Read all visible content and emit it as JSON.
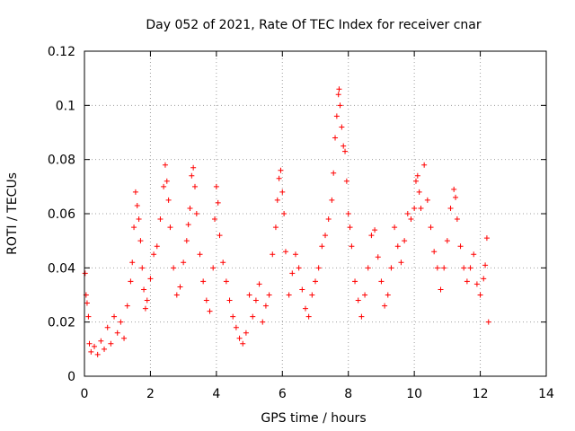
{
  "chart_data": {
    "type": "scatter",
    "title": "Day 052 of 2021, Rate Of TEC Index for receiver cnar",
    "xlabel": "GPS time / hours",
    "ylabel": "ROTI / TECUs",
    "xlim": [
      0,
      14
    ],
    "ylim": [
      0,
      0.12
    ],
    "x_ticks": [
      {
        "value": 0,
        "label": "0"
      },
      {
        "value": 2,
        "label": "2"
      },
      {
        "value": 4,
        "label": "4"
      },
      {
        "value": 6,
        "label": "6"
      },
      {
        "value": 8,
        "label": "8"
      },
      {
        "value": 10,
        "label": "10"
      },
      {
        "value": 12,
        "label": "12"
      },
      {
        "value": 14,
        "label": "14"
      }
    ],
    "y_ticks": [
      {
        "value": 0,
        "label": "0"
      },
      {
        "value": 0.02,
        "label": "0.02"
      },
      {
        "value": 0.04,
        "label": "0.04"
      },
      {
        "value": 0.06,
        "label": "0.06"
      },
      {
        "value": 0.08,
        "label": "0.08"
      },
      {
        "value": 0.1,
        "label": "0.1"
      },
      {
        "value": 0.12,
        "label": "0.12"
      }
    ],
    "grid": true,
    "marker": "plus",
    "color": "#ff0000",
    "series": [
      {
        "points": [
          [
            0.02,
            0.038
          ],
          [
            0.05,
            0.03
          ],
          [
            0.08,
            0.027
          ],
          [
            0.12,
            0.022
          ],
          [
            0.15,
            0.012
          ],
          [
            0.2,
            0.009
          ],
          [
            0.3,
            0.011
          ],
          [
            0.4,
            0.008
          ],
          [
            0.5,
            0.013
          ],
          [
            0.6,
            0.01
          ],
          [
            0.7,
            0.018
          ],
          [
            0.8,
            0.012
          ],
          [
            0.9,
            0.022
          ],
          [
            1.0,
            0.016
          ],
          [
            1.1,
            0.02
          ],
          [
            1.2,
            0.014
          ],
          [
            1.3,
            0.026
          ],
          [
            1.4,
            0.035
          ],
          [
            1.45,
            0.042
          ],
          [
            1.5,
            0.055
          ],
          [
            1.55,
            0.068
          ],
          [
            1.6,
            0.063
          ],
          [
            1.65,
            0.058
          ],
          [
            1.7,
            0.05
          ],
          [
            1.75,
            0.04
          ],
          [
            1.8,
            0.032
          ],
          [
            1.85,
            0.025
          ],
          [
            1.9,
            0.028
          ],
          [
            2.0,
            0.036
          ],
          [
            2.1,
            0.045
          ],
          [
            2.2,
            0.048
          ],
          [
            2.3,
            0.058
          ],
          [
            2.4,
            0.07
          ],
          [
            2.45,
            0.078
          ],
          [
            2.5,
            0.072
          ],
          [
            2.55,
            0.065
          ],
          [
            2.6,
            0.055
          ],
          [
            2.7,
            0.04
          ],
          [
            2.8,
            0.03
          ],
          [
            2.9,
            0.033
          ],
          [
            3.0,
            0.042
          ],
          [
            3.1,
            0.05
          ],
          [
            3.15,
            0.056
          ],
          [
            3.2,
            0.062
          ],
          [
            3.25,
            0.074
          ],
          [
            3.3,
            0.077
          ],
          [
            3.35,
            0.07
          ],
          [
            3.4,
            0.06
          ],
          [
            3.5,
            0.045
          ],
          [
            3.6,
            0.035
          ],
          [
            3.7,
            0.028
          ],
          [
            3.8,
            0.024
          ],
          [
            3.9,
            0.04
          ],
          [
            3.95,
            0.058
          ],
          [
            4.0,
            0.07
          ],
          [
            4.05,
            0.064
          ],
          [
            4.1,
            0.052
          ],
          [
            4.2,
            0.042
          ],
          [
            4.3,
            0.035
          ],
          [
            4.4,
            0.028
          ],
          [
            4.5,
            0.022
          ],
          [
            4.6,
            0.018
          ],
          [
            4.7,
            0.014
          ],
          [
            4.8,
            0.012
          ],
          [
            4.9,
            0.016
          ],
          [
            5.0,
            0.03
          ],
          [
            5.1,
            0.022
          ],
          [
            5.2,
            0.028
          ],
          [
            5.3,
            0.034
          ],
          [
            5.4,
            0.02
          ],
          [
            5.5,
            0.026
          ],
          [
            5.6,
            0.03
          ],
          [
            5.7,
            0.045
          ],
          [
            5.8,
            0.055
          ],
          [
            5.85,
            0.065
          ],
          [
            5.9,
            0.073
          ],
          [
            5.95,
            0.076
          ],
          [
            6.0,
            0.068
          ],
          [
            6.05,
            0.06
          ],
          [
            6.1,
            0.046
          ],
          [
            6.2,
            0.03
          ],
          [
            6.3,
            0.038
          ],
          [
            6.4,
            0.045
          ],
          [
            6.5,
            0.04
          ],
          [
            6.6,
            0.032
          ],
          [
            6.7,
            0.025
          ],
          [
            6.8,
            0.022
          ],
          [
            6.9,
            0.03
          ],
          [
            7.0,
            0.035
          ],
          [
            7.1,
            0.04
          ],
          [
            7.2,
            0.048
          ],
          [
            7.3,
            0.052
          ],
          [
            7.4,
            0.058
          ],
          [
            7.5,
            0.065
          ],
          [
            7.55,
            0.075
          ],
          [
            7.6,
            0.088
          ],
          [
            7.65,
            0.096
          ],
          [
            7.7,
            0.104
          ],
          [
            7.72,
            0.106
          ],
          [
            7.75,
            0.1
          ],
          [
            7.8,
            0.092
          ],
          [
            7.85,
            0.085
          ],
          [
            7.9,
            0.083
          ],
          [
            7.95,
            0.072
          ],
          [
            8.0,
            0.06
          ],
          [
            8.05,
            0.055
          ],
          [
            8.1,
            0.048
          ],
          [
            8.2,
            0.035
          ],
          [
            8.3,
            0.028
          ],
          [
            8.4,
            0.022
          ],
          [
            8.5,
            0.03
          ],
          [
            8.6,
            0.04
          ],
          [
            8.7,
            0.052
          ],
          [
            8.8,
            0.054
          ],
          [
            8.9,
            0.044
          ],
          [
            9.0,
            0.035
          ],
          [
            9.1,
            0.026
          ],
          [
            9.2,
            0.03
          ],
          [
            9.3,
            0.04
          ],
          [
            9.4,
            0.055
          ],
          [
            9.5,
            0.048
          ],
          [
            9.6,
            0.042
          ],
          [
            9.7,
            0.05
          ],
          [
            9.8,
            0.06
          ],
          [
            9.9,
            0.058
          ],
          [
            10.0,
            0.062
          ],
          [
            10.05,
            0.072
          ],
          [
            10.1,
            0.074
          ],
          [
            10.15,
            0.068
          ],
          [
            10.2,
            0.062
          ],
          [
            10.3,
            0.078
          ],
          [
            10.4,
            0.065
          ],
          [
            10.5,
            0.055
          ],
          [
            10.6,
            0.046
          ],
          [
            10.7,
            0.04
          ],
          [
            10.8,
            0.032
          ],
          [
            10.9,
            0.04
          ],
          [
            11.0,
            0.05
          ],
          [
            11.1,
            0.062
          ],
          [
            11.2,
            0.069
          ],
          [
            11.25,
            0.066
          ],
          [
            11.3,
            0.058
          ],
          [
            11.4,
            0.048
          ],
          [
            11.5,
            0.04
          ],
          [
            11.6,
            0.035
          ],
          [
            11.7,
            0.04
          ],
          [
            11.8,
            0.045
          ],
          [
            11.9,
            0.034
          ],
          [
            12.0,
            0.03
          ],
          [
            12.1,
            0.036
          ],
          [
            12.15,
            0.041
          ],
          [
            12.2,
            0.051
          ],
          [
            12.25,
            0.02
          ]
        ]
      }
    ]
  }
}
